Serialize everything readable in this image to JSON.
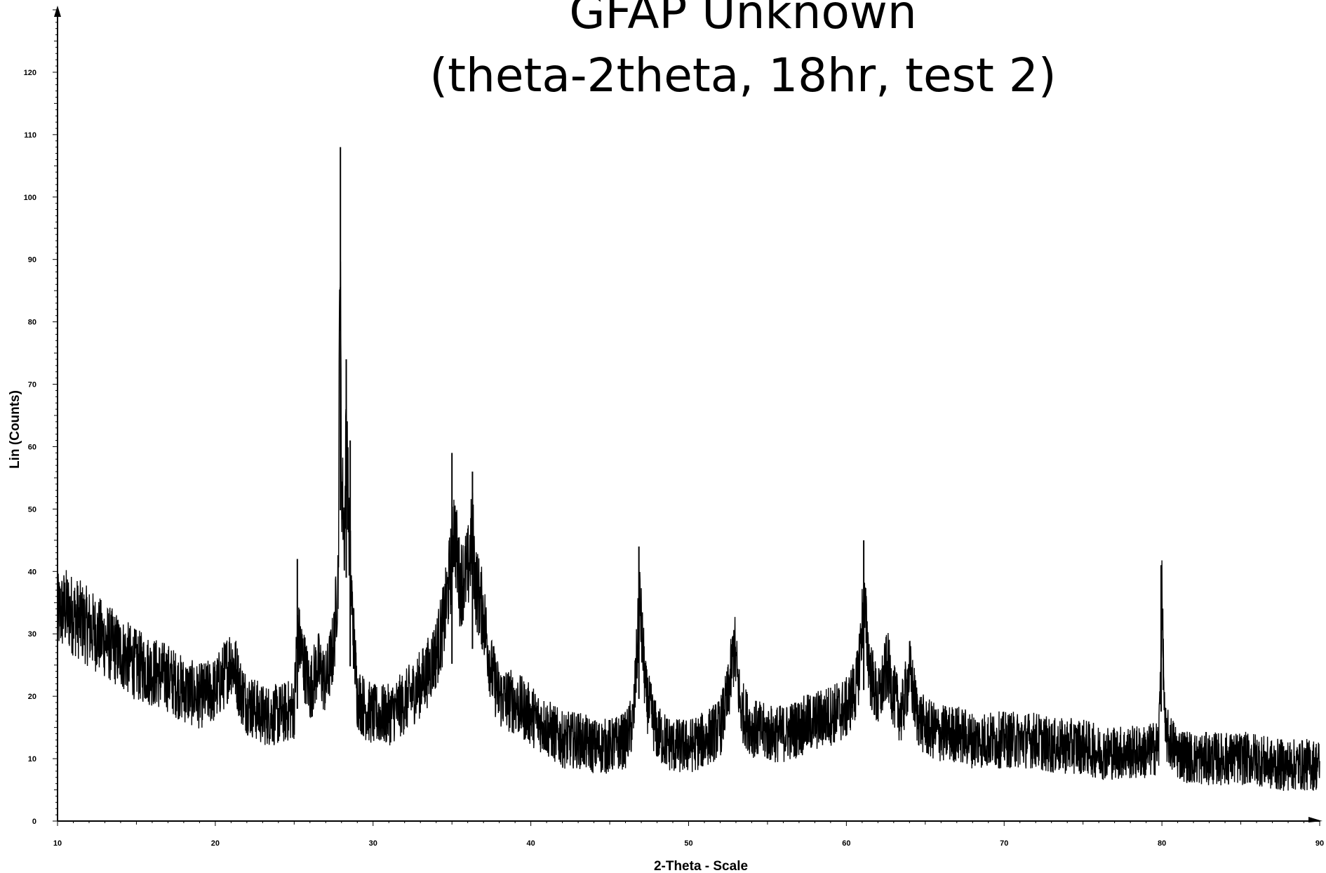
{
  "chart_data": {
    "type": "line",
    "title": [
      "GFAP Unknown",
      "(theta-2theta, 18hr, test 2)"
    ],
    "xlabel": "2-Theta - Scale",
    "ylabel": "Lin (Counts)",
    "xlim": [
      10,
      90
    ],
    "ylim": [
      0,
      130
    ],
    "x_ticks": [
      "10",
      "20",
      "30",
      "40",
      "50",
      "60",
      "70",
      "80",
      "90"
    ],
    "y_ticks": [
      "0",
      "10",
      "20",
      "30",
      "40",
      "50",
      "60",
      "70",
      "80",
      "90",
      "100",
      "110",
      "120"
    ],
    "grid": false,
    "legend": "none",
    "line_color": "#000000",
    "series": [
      {
        "x": [
          10,
          10.5,
          11,
          11.5,
          12,
          13,
          14,
          15,
          16,
          17,
          18,
          19,
          20,
          20.5,
          21,
          21.3,
          21.6,
          22,
          23,
          24,
          25,
          25.2,
          26,
          26.5,
          27,
          27.5,
          27.8,
          27.9,
          28.0,
          28.2,
          28.3,
          28.45,
          28.6,
          28.8,
          29,
          29.5,
          30,
          31,
          32,
          33,
          33.5,
          34,
          34.5,
          35,
          35.1,
          35.5,
          36,
          36.3,
          36.5,
          37,
          37.5,
          38,
          39,
          40,
          41,
          42,
          43,
          44,
          45,
          46,
          46.5,
          46.9,
          47.3,
          48,
          49,
          50,
          51,
          52,
          52.5,
          52.9,
          53.3,
          54,
          55,
          56,
          57,
          58,
          59,
          60,
          60.7,
          61.1,
          61.5,
          62,
          62.6,
          63,
          63.5,
          64,
          64.5,
          65,
          66,
          67,
          68,
          69,
          70,
          71,
          72,
          73,
          74,
          75,
          76,
          77,
          78,
          79,
          79.8,
          80.0,
          80.2,
          81,
          82,
          83,
          84,
          85,
          86,
          87,
          88,
          89,
          90
        ],
        "y": [
          33,
          34,
          33,
          32,
          31,
          29,
          27,
          25,
          24,
          23,
          21,
          20,
          21,
          23,
          26,
          24,
          21,
          19,
          17,
          17,
          18,
          30,
          21,
          25,
          22,
          28,
          40,
          95,
          55,
          45,
          65,
          48,
          38,
          28,
          20,
          18,
          17,
          17,
          19,
          22,
          24,
          27,
          32,
          42,
          48,
          38,
          40,
          46,
          38,
          33,
          24,
          20,
          19,
          17,
          15,
          13,
          13,
          12,
          12,
          13,
          16,
          35,
          20,
          14,
          12,
          12,
          13,
          15,
          20,
          28,
          18,
          15,
          14,
          14,
          15,
          16,
          17,
          18,
          22,
          35,
          24,
          19,
          25,
          20,
          17,
          24,
          17,
          15,
          14,
          14,
          13,
          13,
          13,
          13,
          13,
          12,
          12,
          12,
          11,
          11,
          11,
          11,
          12,
          35,
          14,
          11,
          10,
          10,
          10,
          10,
          10,
          9,
          9,
          9,
          9
        ],
        "noise_amplitude": 6
      }
    ]
  }
}
